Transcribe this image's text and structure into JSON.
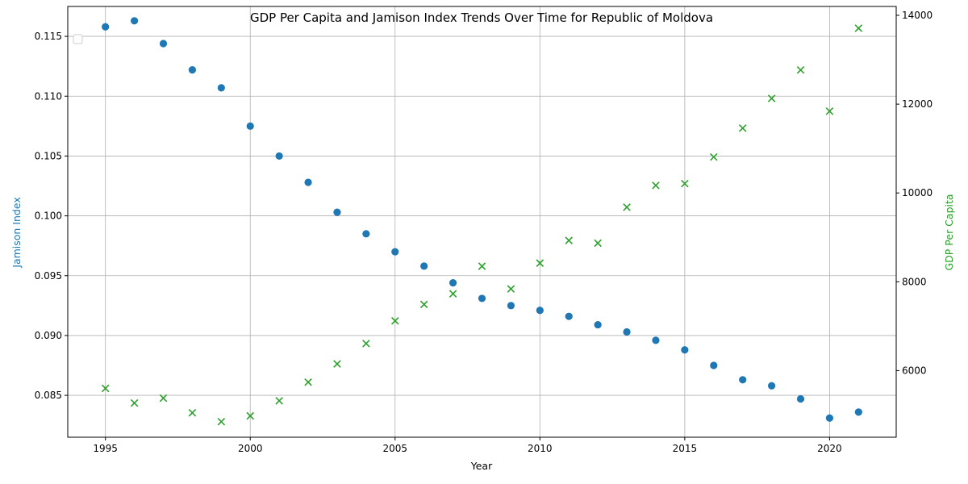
{
  "chart_data": {
    "type": "scatter",
    "title": "GDP Per Capita and Jamison Index Trends Over Time for Republic of Moldova",
    "xlabel": "Year",
    "ylabel_left": "Jamison Index",
    "ylabel_right": "GDP Per Capita",
    "xlim": [
      1993.7,
      2022.3
    ],
    "ylim_left": [
      0.0815,
      0.1175
    ],
    "ylim_right": [
      4500,
      14200
    ],
    "x_ticks": [
      1995,
      2000,
      2005,
      2010,
      2015,
      2020
    ],
    "y_ticks_left": [
      0.085,
      0.09,
      0.095,
      0.1,
      0.105,
      0.11,
      0.115
    ],
    "y_ticks_right": [
      6000,
      8000,
      10000,
      12000,
      14000
    ],
    "grid": true,
    "legend": "upper-left (empty)",
    "colors": {
      "jamison": "#1f77b4",
      "gdp": "#2ca02c"
    },
    "x": [
      1995,
      1996,
      1997,
      1998,
      1999,
      2000,
      2001,
      2002,
      2003,
      2004,
      2005,
      2006,
      2007,
      2008,
      2009,
      2010,
      2011,
      2012,
      2013,
      2014,
      2015,
      2016,
      2017,
      2018,
      2019,
      2020,
      2021
    ],
    "series": [
      {
        "axis": "left",
        "marker": "circle",
        "values": [
          0.1158,
          0.1163,
          0.1144,
          0.1122,
          0.1107,
          0.1075,
          0.105,
          0.1028,
          0.1003,
          0.0985,
          0.097,
          0.0958,
          0.0944,
          0.0931,
          0.0925,
          0.0921,
          0.0916,
          0.0909,
          0.0903,
          0.0896,
          0.0888,
          0.0875,
          0.0863,
          0.0858,
          0.0847,
          0.0831,
          0.0836
        ]
      },
      {
        "axis": "right",
        "marker": "x",
        "values": [
          5600,
          5270,
          5380,
          5050,
          4850,
          4980,
          5320,
          5740,
          6150,
          6610,
          7120,
          7490,
          7730,
          8350,
          7840,
          8420,
          8930,
          8870,
          9680,
          10170,
          10210,
          10810,
          11460,
          12130,
          12770,
          11840,
          13710
        ]
      }
    ]
  }
}
